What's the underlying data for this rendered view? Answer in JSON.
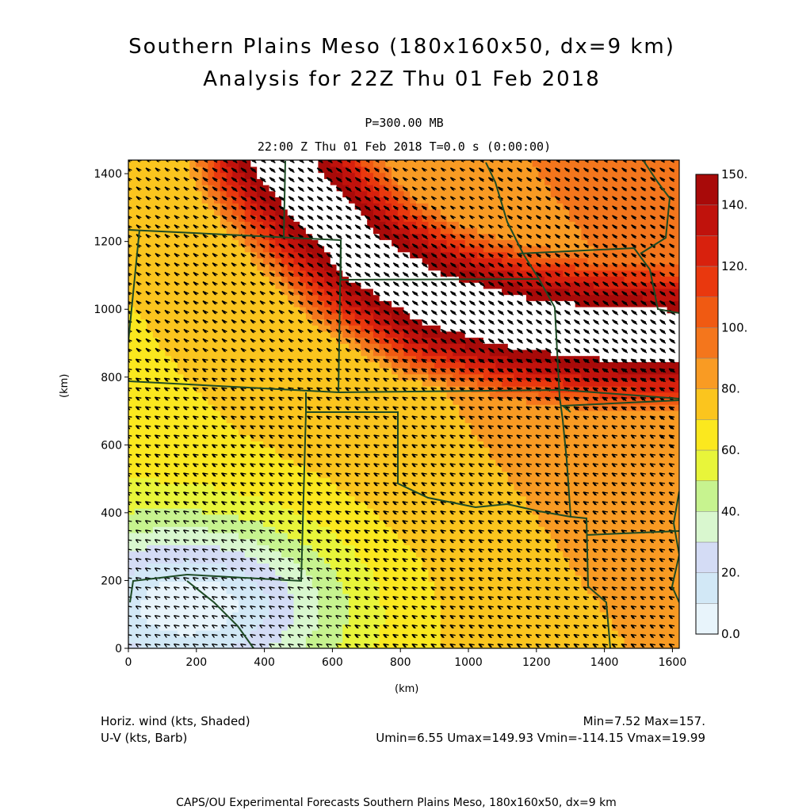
{
  "header": {
    "title_line1": "Southern Plains Meso (180x160x50, dx=9 km)",
    "title_line2": "Analysis for 22Z Thu 01 Feb 2018",
    "level": "P=300.00 MB",
    "time_line": "22:00 Z Thu 01 Feb 2018    T=0.0 s (0:00:00)"
  },
  "chart_data": {
    "type": "heatmap",
    "xlabel": "(km)",
    "ylabel": "(km)",
    "xlim": [
      0,
      1620
    ],
    "ylim": [
      0,
      1440
    ],
    "x_ticks": [
      0,
      200,
      400,
      600,
      800,
      1000,
      1200,
      1400,
      1600
    ],
    "y_ticks": [
      0,
      200,
      400,
      600,
      800,
      1000,
      1200,
      1400
    ],
    "colorbar": {
      "levels": [
        0,
        10,
        20,
        30,
        40,
        50,
        60,
        70,
        80,
        90,
        100,
        110,
        120,
        130,
        140,
        150
      ],
      "labels": [
        "0.0",
        "20.",
        "40.",
        "60.",
        "80.",
        "100.",
        "120.",
        "140.",
        "150."
      ],
      "label_values": [
        0,
        20,
        40,
        60,
        80,
        100,
        120,
        140,
        150
      ],
      "colors": [
        "#e8f4fb",
        "#d2e8f6",
        "#d4dcf5",
        "#d9f7cf",
        "#c7f38f",
        "#e8f53a",
        "#fbe81e",
        "#fbc51e",
        "#f99b23",
        "#f4761c",
        "#f05a12",
        "#e9380e",
        "#d8210d",
        "#c0120c",
        "#a80a09"
      ],
      "above_max_color": "#ffffff"
    },
    "field": "Horizontal wind speed (kts) shaded with U-V wind barbs",
    "stats": {
      "min": 7.52,
      "max": 157,
      "umin": 6.55,
      "umax": 149.93,
      "vmin": -114.15,
      "vmax": 19.99
    }
  },
  "legend": {
    "shaded_label": "Horiz. wind (kts, Shaded)",
    "barb_label": "U-V (kts, Barb)",
    "minmax": "Min=7.52 Max=157.",
    "uv_stats": "Umin=6.55 Umax=149.93 Vmin=-114.15 Vmax=19.99"
  },
  "footer": {
    "credit": "CAPS/OU Experimental Forecasts  Southern Plains Meso, 180x160x50, dx=9 km"
  },
  "colors": {
    "boundary": "#1d4a24",
    "barb": "#000000"
  }
}
